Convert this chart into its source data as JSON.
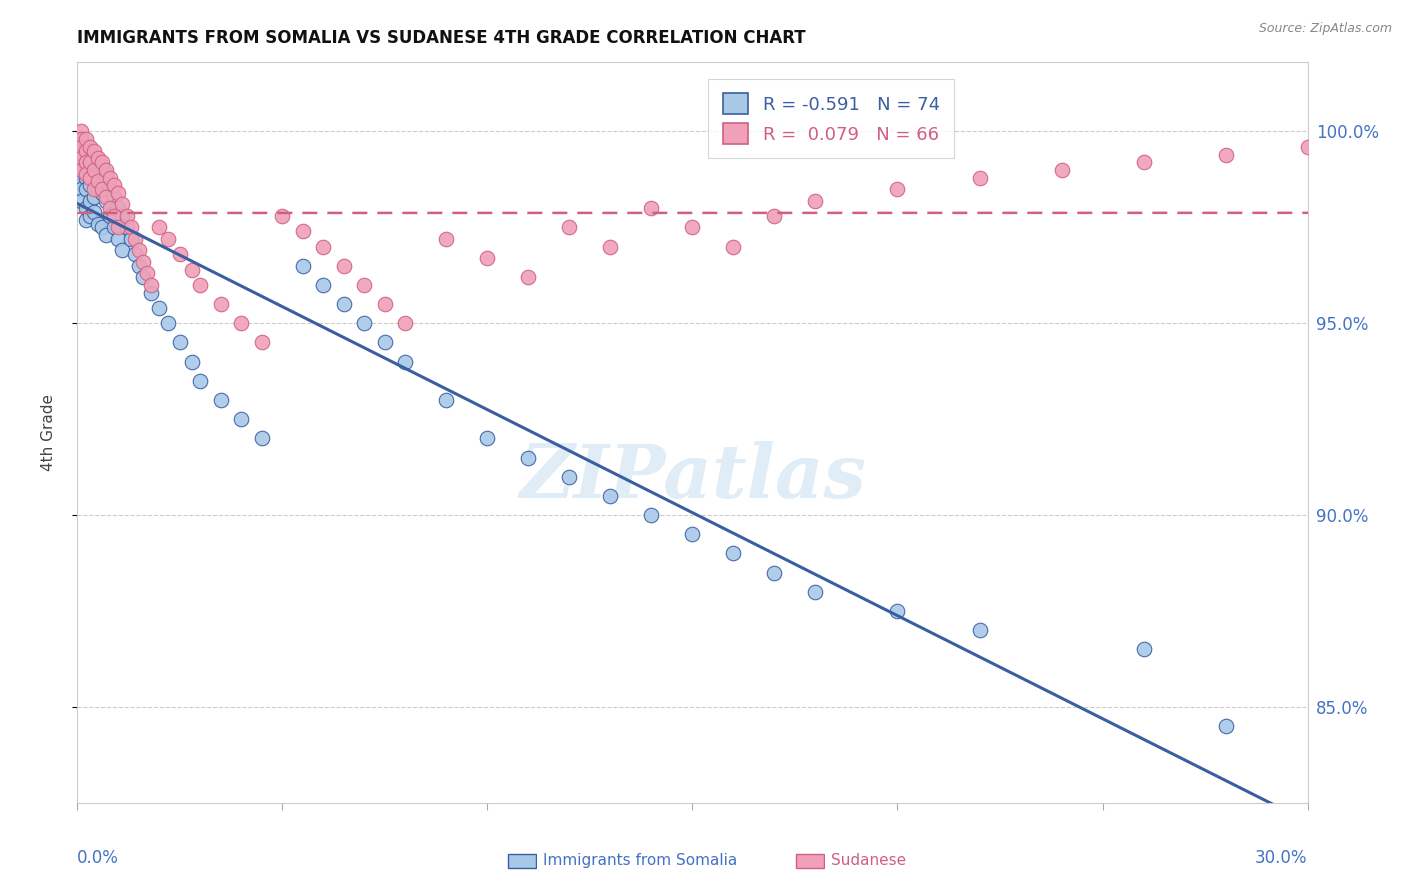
{
  "title": "IMMIGRANTS FROM SOMALIA VS SUDANESE 4TH GRADE CORRELATION CHART",
  "source": "Source: ZipAtlas.com",
  "ylabel": "4th Grade",
  "xmin": 0.0,
  "xmax": 0.3,
  "ymin": 82.5,
  "ymax": 101.8,
  "watermark": "ZIPatlas",
  "color_somalia": "#a8c8e8",
  "color_sudanese": "#f0a0b8",
  "color_line_somalia": "#3a5fa0",
  "color_line_sudanese": "#d06080",
  "color_axis_labels": "#4472c4",
  "ytick_vals": [
    85.0,
    90.0,
    95.0,
    100.0
  ],
  "ytick_labels": [
    "85.0%",
    "90.0%",
    "95.0%",
    "100.0%"
  ],
  "somalia_x": [
    0.001,
    0.001,
    0.001,
    0.001,
    0.001,
    0.001,
    0.001,
    0.001,
    0.002,
    0.002,
    0.002,
    0.002,
    0.002,
    0.002,
    0.003,
    0.003,
    0.003,
    0.003,
    0.003,
    0.004,
    0.004,
    0.004,
    0.004,
    0.005,
    0.005,
    0.005,
    0.006,
    0.006,
    0.006,
    0.007,
    0.007,
    0.007,
    0.008,
    0.008,
    0.009,
    0.009,
    0.01,
    0.01,
    0.011,
    0.011,
    0.012,
    0.013,
    0.014,
    0.015,
    0.016,
    0.018,
    0.02,
    0.022,
    0.025,
    0.028,
    0.03,
    0.035,
    0.04,
    0.045,
    0.055,
    0.06,
    0.065,
    0.07,
    0.075,
    0.08,
    0.09,
    0.1,
    0.11,
    0.12,
    0.13,
    0.14,
    0.15,
    0.16,
    0.17,
    0.18,
    0.2,
    0.22,
    0.26,
    0.28
  ],
  "somalia_y": [
    99.8,
    99.5,
    99.3,
    99.1,
    98.9,
    98.7,
    98.5,
    98.2,
    99.6,
    99.2,
    98.8,
    98.5,
    98.0,
    97.7,
    99.4,
    99.0,
    98.6,
    98.2,
    97.8,
    99.2,
    98.8,
    98.3,
    97.9,
    99.0,
    98.5,
    97.6,
    99.1,
    98.4,
    97.5,
    98.9,
    98.2,
    97.3,
    98.5,
    97.8,
    98.3,
    97.5,
    98.0,
    97.2,
    97.8,
    96.9,
    97.5,
    97.2,
    96.8,
    96.5,
    96.2,
    95.8,
    95.4,
    95.0,
    94.5,
    94.0,
    93.5,
    93.0,
    92.5,
    92.0,
    96.5,
    96.0,
    95.5,
    95.0,
    94.5,
    94.0,
    93.0,
    92.0,
    91.5,
    91.0,
    90.5,
    90.0,
    89.5,
    89.0,
    88.5,
    88.0,
    87.5,
    87.0,
    86.5,
    84.5
  ],
  "sudanese_x": [
    0.001,
    0.001,
    0.001,
    0.001,
    0.001,
    0.002,
    0.002,
    0.002,
    0.002,
    0.003,
    0.003,
    0.003,
    0.004,
    0.004,
    0.004,
    0.005,
    0.005,
    0.006,
    0.006,
    0.007,
    0.007,
    0.008,
    0.008,
    0.009,
    0.009,
    0.01,
    0.01,
    0.011,
    0.012,
    0.013,
    0.014,
    0.015,
    0.016,
    0.017,
    0.018,
    0.02,
    0.022,
    0.025,
    0.028,
    0.03,
    0.035,
    0.04,
    0.045,
    0.05,
    0.055,
    0.06,
    0.065,
    0.07,
    0.075,
    0.08,
    0.09,
    0.1,
    0.11,
    0.12,
    0.13,
    0.14,
    0.15,
    0.16,
    0.17,
    0.18,
    0.2,
    0.22,
    0.24,
    0.26,
    0.28,
    0.3
  ],
  "sudanese_y": [
    100.0,
    99.8,
    99.6,
    99.3,
    99.0,
    99.8,
    99.5,
    99.2,
    98.9,
    99.6,
    99.2,
    98.8,
    99.5,
    99.0,
    98.5,
    99.3,
    98.7,
    99.2,
    98.5,
    99.0,
    98.3,
    98.8,
    98.0,
    98.6,
    97.8,
    98.4,
    97.5,
    98.1,
    97.8,
    97.5,
    97.2,
    96.9,
    96.6,
    96.3,
    96.0,
    97.5,
    97.2,
    96.8,
    96.4,
    96.0,
    95.5,
    95.0,
    94.5,
    97.8,
    97.4,
    97.0,
    96.5,
    96.0,
    95.5,
    95.0,
    97.2,
    96.7,
    96.2,
    97.5,
    97.0,
    98.0,
    97.5,
    97.0,
    97.8,
    98.2,
    98.5,
    98.8,
    99.0,
    99.2,
    99.4,
    99.6
  ]
}
